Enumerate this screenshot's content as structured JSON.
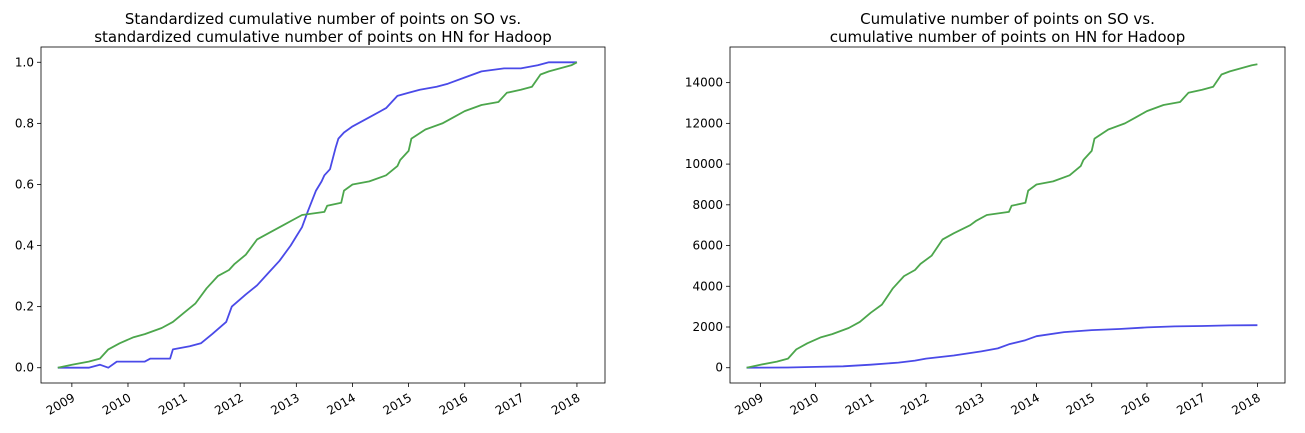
{
  "chart_data": [
    {
      "type": "line",
      "title": [
        "Standardized cumulative number of points on SO vs.",
        "standardized cumulative number of points on HN for Hadoop"
      ],
      "xlabel": "",
      "ylabel": "",
      "xlim": [
        2008.45,
        2018.5
      ],
      "ylim": [
        -0.05,
        1.05
      ],
      "grid": false,
      "xticks": [
        2009,
        2010,
        2011,
        2012,
        2013,
        2014,
        2015,
        2016,
        2017,
        2018
      ],
      "xtick_labels": [
        "2009",
        "2010",
        "2011",
        "2012",
        "2013",
        "2014",
        "2015",
        "2016",
        "2017",
        "2018"
      ],
      "yticks": [
        0,
        0.2,
        0.4,
        0.6,
        0.8,
        1.0
      ],
      "ytick_labels": [
        "0.0",
        "0.2",
        "0.4",
        "0.6",
        "0.8",
        "1.0"
      ],
      "series": [
        {
          "color": "#4a4ae8",
          "x": [
            2008.75,
            2009.0,
            2009.3,
            2009.5,
            2009.65,
            2009.8,
            2010.3,
            2010.4,
            2010.75,
            2010.8,
            2011.1,
            2011.3,
            2011.5,
            2011.75,
            2011.85,
            2012.1,
            2012.3,
            2012.5,
            2012.7,
            2012.9,
            2013.0,
            2013.1,
            2013.2,
            2013.35,
            2013.45,
            2013.5,
            2013.6,
            2013.7,
            2013.75,
            2013.85,
            2014.0,
            2014.3,
            2014.6,
            2014.8,
            2015.0,
            2015.2,
            2015.5,
            2015.7,
            2016.0,
            2016.3,
            2016.7,
            2017.0,
            2017.3,
            2017.5,
            2017.8,
            2018.0
          ],
          "y": [
            0.0,
            0.0,
            0.0,
            0.01,
            0.0,
            0.02,
            0.02,
            0.03,
            0.03,
            0.06,
            0.07,
            0.08,
            0.11,
            0.15,
            0.2,
            0.24,
            0.27,
            0.31,
            0.35,
            0.4,
            0.43,
            0.46,
            0.51,
            0.58,
            0.61,
            0.63,
            0.65,
            0.72,
            0.75,
            0.77,
            0.79,
            0.82,
            0.85,
            0.89,
            0.9,
            0.91,
            0.92,
            0.93,
            0.95,
            0.97,
            0.98,
            0.98,
            0.99,
            1.0,
            1.0,
            1.0
          ]
        },
        {
          "color": "#4ca64c",
          "x": [
            2008.75,
            2009.0,
            2009.3,
            2009.5,
            2009.65,
            2009.85,
            2010.1,
            2010.3,
            2010.6,
            2010.8,
            2011.0,
            2011.2,
            2011.4,
            2011.6,
            2011.8,
            2011.9,
            2012.1,
            2012.3,
            2012.5,
            2012.8,
            2012.9,
            2013.1,
            2013.5,
            2013.55,
            2013.8,
            2013.85,
            2014.0,
            2014.3,
            2014.6,
            2014.8,
            2014.85,
            2015.0,
            2015.05,
            2015.3,
            2015.6,
            2015.8,
            2016.0,
            2016.3,
            2016.6,
            2016.75,
            2017.0,
            2017.2,
            2017.35,
            2017.5,
            2017.9,
            2018.0
          ],
          "y": [
            0.0,
            0.01,
            0.02,
            0.03,
            0.06,
            0.08,
            0.1,
            0.11,
            0.13,
            0.15,
            0.18,
            0.21,
            0.26,
            0.3,
            0.32,
            0.34,
            0.37,
            0.42,
            0.44,
            0.47,
            0.48,
            0.5,
            0.51,
            0.53,
            0.54,
            0.58,
            0.6,
            0.61,
            0.63,
            0.66,
            0.68,
            0.71,
            0.75,
            0.78,
            0.8,
            0.82,
            0.84,
            0.86,
            0.87,
            0.9,
            0.91,
            0.92,
            0.96,
            0.97,
            0.99,
            1.0
          ]
        }
      ]
    },
    {
      "type": "line",
      "title": [
        "Cumulative number of points on SO vs.",
        "cumulative number of points on HN for Hadoop"
      ],
      "xlabel": "",
      "ylabel": "",
      "xlim": [
        2008.45,
        2018.5
      ],
      "ylim": [
        -750,
        15750
      ],
      "grid": false,
      "xticks": [
        2009,
        2010,
        2011,
        2012,
        2013,
        2014,
        2015,
        2016,
        2017,
        2018
      ],
      "xtick_labels": [
        "2009",
        "2010",
        "2011",
        "2012",
        "2013",
        "2014",
        "2015",
        "2016",
        "2017",
        "2018"
      ],
      "yticks": [
        0,
        2000,
        4000,
        6000,
        8000,
        10000,
        12000,
        14000
      ],
      "ytick_labels": [
        "0",
        "2000",
        "4000",
        "6000",
        "8000",
        "10000",
        "12000",
        "14000"
      ],
      "series": [
        {
          "color": "#4a4ae8",
          "x": [
            2008.75,
            2009.5,
            2010.0,
            2010.5,
            2011.0,
            2011.5,
            2011.8,
            2012.0,
            2012.5,
            2013.0,
            2013.3,
            2013.5,
            2013.8,
            2014.0,
            2014.5,
            2015.0,
            2015.5,
            2016.0,
            2016.5,
            2017.0,
            2017.5,
            2018.0
          ],
          "y": [
            0,
            10,
            40,
            70,
            150,
            250,
            350,
            450,
            600,
            800,
            950,
            1150,
            1350,
            1550,
            1750,
            1850,
            1900,
            1980,
            2030,
            2050,
            2080,
            2090
          ]
        },
        {
          "color": "#4ca64c",
          "x": [
            2008.75,
            2009.0,
            2009.3,
            2009.5,
            2009.65,
            2009.85,
            2010.1,
            2010.3,
            2010.6,
            2010.8,
            2011.0,
            2011.2,
            2011.4,
            2011.6,
            2011.8,
            2011.9,
            2012.1,
            2012.3,
            2012.5,
            2012.8,
            2012.9,
            2013.1,
            2013.5,
            2013.55,
            2013.8,
            2013.85,
            2014.0,
            2014.3,
            2014.6,
            2014.8,
            2014.85,
            2015.0,
            2015.05,
            2015.3,
            2015.6,
            2015.8,
            2016.0,
            2016.3,
            2016.6,
            2016.75,
            2017.0,
            2017.2,
            2017.35,
            2017.5,
            2017.9,
            2018.0
          ],
          "y": [
            0,
            150,
            300,
            450,
            900,
            1200,
            1500,
            1650,
            1950,
            2250,
            2700,
            3100,
            3900,
            4500,
            4800,
            5100,
            5500,
            6300,
            6600,
            7000,
            7200,
            7500,
            7650,
            7950,
            8100,
            8700,
            9000,
            9150,
            9450,
            9900,
            10200,
            10650,
            11250,
            11700,
            12000,
            12300,
            12600,
            12900,
            13050,
            13500,
            13650,
            13800,
            14400,
            14550,
            14850,
            14900
          ]
        }
      ]
    }
  ]
}
